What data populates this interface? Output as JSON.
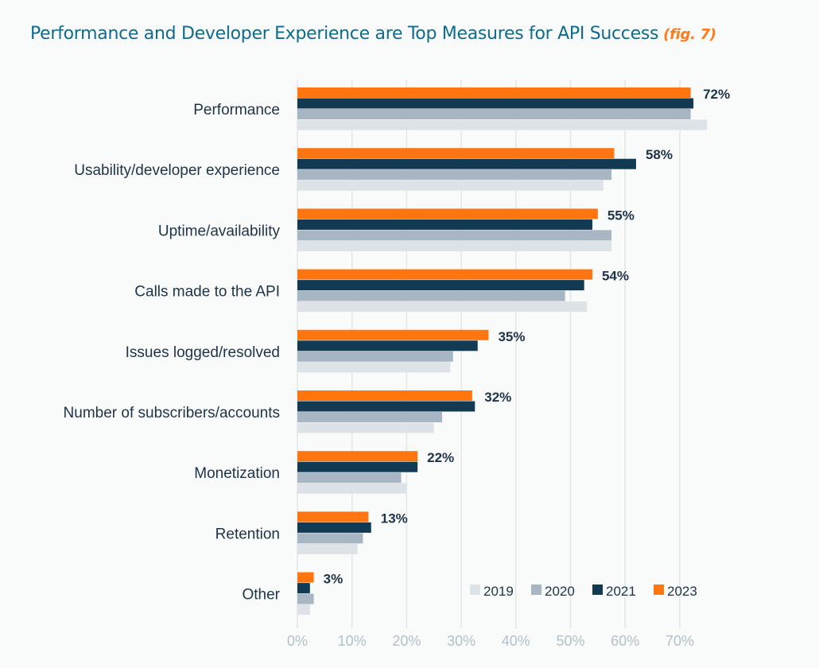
{
  "title": "Performance and Developer Experience are Top Measures for API Success",
  "fig_label": "(fig. 7)",
  "chart_data": {
    "type": "bar",
    "orientation": "horizontal",
    "categories": [
      "Performance",
      "Usability/developer experience",
      "Uptime/availability",
      "Calls made to the API",
      "Issues logged/resolved",
      "Number of subscribers/accounts",
      "Monetization",
      "Retention",
      "Other"
    ],
    "series": [
      {
        "name": "2019",
        "color": "#dde2e6",
        "values": [
          75,
          56,
          57.5,
          53,
          28,
          25,
          20,
          11,
          2.3
        ]
      },
      {
        "name": "2020",
        "color": "#a7b6c2",
        "values": [
          72,
          57.5,
          57.5,
          49,
          28.5,
          26.5,
          19,
          12,
          3
        ]
      },
      {
        "name": "2021",
        "color": "#123a53",
        "values": [
          72.5,
          62,
          54,
          52.5,
          33,
          32.5,
          22,
          13.5,
          2.3
        ]
      },
      {
        "name": "2023",
        "color": "#ff7510",
        "values": [
          72,
          58,
          55,
          54,
          35,
          32,
          22,
          13,
          3
        ]
      }
    ],
    "data_labels": [
      "72%",
      "58%",
      "55%",
      "54%",
      "35%",
      "32%",
      "22%",
      "13%",
      "3%"
    ],
    "xticks": [
      "0%",
      "10%",
      "20%",
      "30%",
      "40%",
      "50%",
      "60%",
      "70%"
    ],
    "xlim": [
      0,
      75
    ],
    "grid": true,
    "legend_position": "bottom-right"
  }
}
